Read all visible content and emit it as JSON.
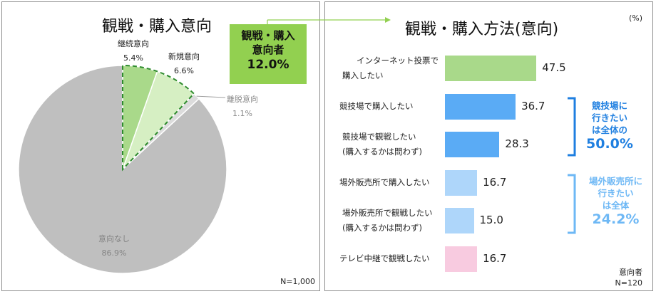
{
  "left": {
    "title": "観戦・購入意向",
    "callout": {
      "line1": "観戦・購入",
      "line2": "意向者",
      "value": "12.0%"
    },
    "footnote": "N=1,000"
  },
  "right": {
    "title": "観戦・購入方法(意向)",
    "unit": "(%)",
    "respondents": "意向者",
    "footnote": "N=120",
    "note_stadium": {
      "line1": "競技場に",
      "line2": "行きたい",
      "line3": "は全体の",
      "value": "50.0%"
    },
    "note_outlet": {
      "line1": "場外販売所に",
      "line2": "行きたい",
      "line3": "は全体",
      "value": "24.2%"
    }
  },
  "colors": {
    "green": "#a9d98a",
    "light_green": "#d6efc3",
    "gray": "#bfbfbf",
    "blue": "#5aabf5",
    "light_blue": "#aed6fa",
    "pink": "#f8cbe0",
    "callout_bg": "#92d050",
    "bracket_dark": "#1f7fe0",
    "bracket_light": "#6eb8f5"
  },
  "chart_data": [
    {
      "type": "pie",
      "title": "観戦・購入意向",
      "slices": [
        {
          "label": "継続意向",
          "value": 5.4,
          "display": "5.4%",
          "color": "#a9d98a"
        },
        {
          "label": "新規意向",
          "value": 6.6,
          "display": "6.6%",
          "color": "#d6efc3"
        },
        {
          "label": "離脱意向",
          "value": 1.1,
          "display": "1.1%",
          "color": "#dcdcdc"
        },
        {
          "label": "意向なし",
          "value": 86.9,
          "display": "86.9%",
          "color": "#bfbfbf"
        }
      ]
    },
    {
      "type": "bar",
      "orientation": "horizontal",
      "title": "観戦・購入方法(意向)",
      "unit": "(%)",
      "xlim": [
        0,
        100
      ],
      "bars": [
        {
          "label_lines": [
            "インターネット投票で",
            "購入したい"
          ],
          "value": 47.5,
          "display": "47.5",
          "color": "#a9d98a"
        },
        {
          "label_lines": [
            "競技場で購入したい"
          ],
          "value": 36.7,
          "display": "36.7",
          "color": "#5aabf5"
        },
        {
          "label_lines": [
            "競技場で観戦したい",
            "(購入するかは問わず)"
          ],
          "value": 28.3,
          "display": "28.3",
          "color": "#5aabf5"
        },
        {
          "label_lines": [
            "場外販売所で購入したい"
          ],
          "value": 16.7,
          "display": "16.7",
          "color": "#aed6fa"
        },
        {
          "label_lines": [
            "場外販売所で観戦したい",
            "(購入するかは問わず)"
          ],
          "value": 15.0,
          "display": "15.0",
          "color": "#aed6fa"
        },
        {
          "label_lines": [
            "テレビ中継で観戦したい"
          ],
          "value": 16.7,
          "display": "16.7",
          "color": "#f8cbe0"
        }
      ]
    }
  ]
}
